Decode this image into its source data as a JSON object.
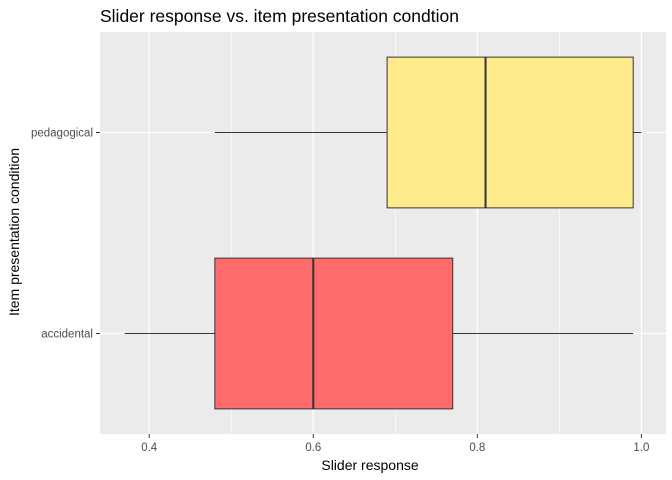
{
  "chart_data": {
    "type": "boxplot",
    "orientation": "horizontal",
    "title": "Slider response vs. item presentation condtion",
    "xlabel": "Slider response",
    "ylabel": "Item presentation condition",
    "xlim": [
      0.34,
      1.03
    ],
    "x_ticks": [
      0.4,
      0.6,
      0.8,
      1.0
    ],
    "x_tick_labels": [
      "0.4",
      "0.6",
      "0.8",
      "1.0"
    ],
    "grid": true,
    "legend": "none",
    "categories": [
      "accidental",
      "pedagogical"
    ],
    "boxes": [
      {
        "category": "accidental",
        "min": 0.37,
        "q1": 0.48,
        "median": 0.6,
        "q3": 0.77,
        "max": 0.99,
        "color": "#FF6B6B"
      },
      {
        "category": "pedagogical",
        "min": 0.48,
        "q1": 0.69,
        "median": 0.81,
        "q3": 0.99,
        "max": 1.0,
        "color": "#FFEB8C"
      }
    ],
    "panel_color": "#EBEBEB",
    "grid_color": "#FFFFFF",
    "line_color": "#333333"
  }
}
